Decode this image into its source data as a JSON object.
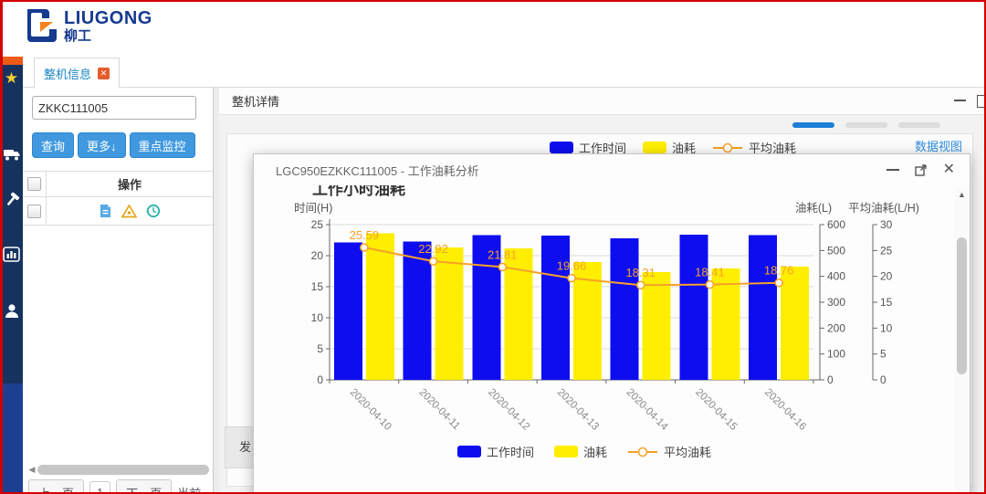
{
  "logo": {
    "en": "LIUGONG",
    "cn": "柳工"
  },
  "sidebar": {
    "icons": [
      "favorites-star",
      "vehicle-truck",
      "tools-hammer",
      "statistics-chart",
      "user-person"
    ]
  },
  "tabs": {
    "machine_info": "整机信息"
  },
  "left_panel": {
    "search_value": "ZKKC111005",
    "buttons": {
      "query": "查询",
      "more": "更多↓",
      "monitor": "重点监控"
    },
    "table": {
      "op_header": "操作",
      "row_icons": [
        "file-detail",
        "map-location",
        "history-clock"
      ]
    },
    "pagination": {
      "prev": "上一页",
      "page": "1",
      "next": "下一页",
      "current": "当前"
    }
  },
  "detail_panel": {
    "title": "整机详情",
    "data_view_link": "数据视图",
    "partial_section": "发"
  },
  "dialog": {
    "title": "LGC950EZKKC111005 - 工作油耗分析",
    "chart_title": "工作小时油耗"
  },
  "colors": {
    "bar_blue": "#0d0df0",
    "bar_yellow": "#ffee00",
    "line_orange": "#f7a128",
    "accent_blue": "#4099df",
    "sidebar_navy": "#16325e",
    "sidebar_blue": "#1d3f91",
    "brand_orange": "#ee5a17",
    "tab_blue": "#1a85c8"
  },
  "chart_data": {
    "type": "bar",
    "categories": [
      "2020-04-10",
      "2020-04-11",
      "2020-04-12",
      "2020-04-13",
      "2020-04-14",
      "2020-04-15",
      "2020-04-16"
    ],
    "series": [
      {
        "name": "工作时间",
        "type": "bar",
        "axis": "left",
        "color": "#0d0df0",
        "values": [
          22.1,
          22.3,
          23.3,
          23.2,
          22.8,
          23.4,
          23.3
        ]
      },
      {
        "name": "油耗",
        "type": "bar",
        "axis": "right1",
        "color": "#ffee00",
        "values": [
          566,
          511,
          508,
          456,
          417,
          431,
          437
        ]
      },
      {
        "name": "平均油耗",
        "type": "line",
        "axis": "right2",
        "color": "#f7a128",
        "values": [
          25.59,
          22.92,
          21.81,
          19.66,
          18.31,
          18.41,
          18.76
        ]
      }
    ],
    "axes": {
      "left": {
        "label": "时间(H)",
        "min": 0,
        "max": 25,
        "step": 5
      },
      "right1": {
        "label": "油耗(L)",
        "min": 0,
        "max": 600,
        "step": 100
      },
      "right2": {
        "label": "平均油耗(L/H)",
        "min": 0,
        "max": 30,
        "step": 5
      }
    },
    "legend": {
      "position": "bottom",
      "entries": [
        "工作时间",
        "油耗",
        "平均油耗"
      ]
    },
    "grid": true,
    "x_label_rotation": 45
  }
}
